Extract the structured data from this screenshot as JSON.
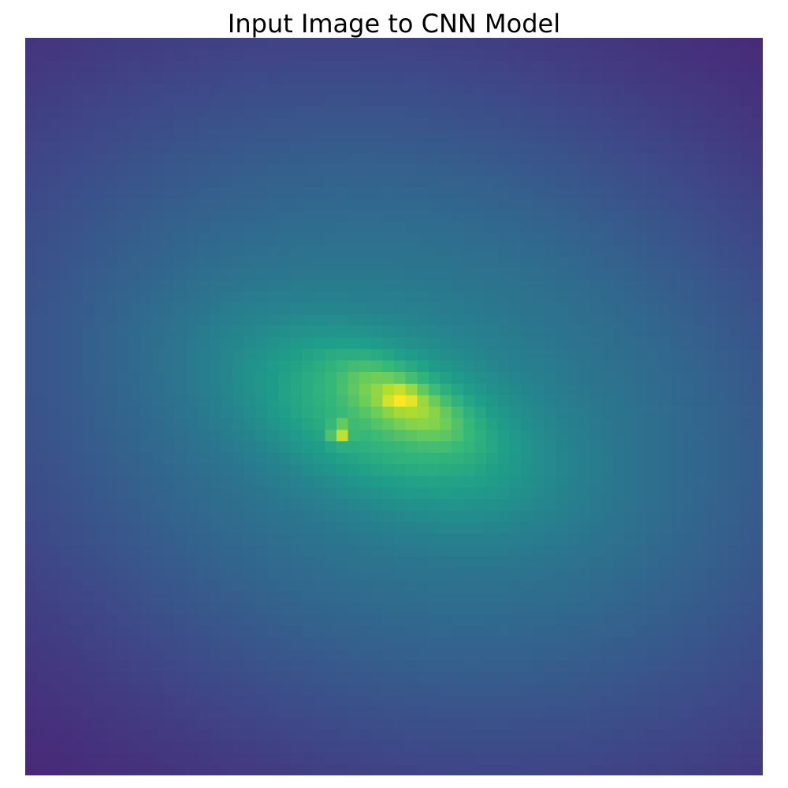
{
  "chart_data": {
    "type": "heatmap",
    "title": "Input Image to CNN Model",
    "xlabel": "",
    "ylabel": "",
    "axes_visible": false,
    "grid": false,
    "colormap": "viridis",
    "colormap_stops": [
      "#440154",
      "#482878",
      "#3e4989",
      "#31688e",
      "#26828e",
      "#1f9e89",
      "#35b779",
      "#6ece58",
      "#b5de2b",
      "#fde725"
    ],
    "grid_size": [
      64,
      64
    ],
    "value_range": [
      0,
      1
    ],
    "model": {
      "description_free": true,
      "background": 0.06,
      "components": [
        {
          "cx": 34.0,
          "cy": 32.5,
          "sx": 30.0,
          "sy": 22.0,
          "angle_deg": -18,
          "amp": 0.38
        },
        {
          "cx": 31.0,
          "cy": 33.0,
          "sx": 9.5,
          "sy": 4.5,
          "angle_deg": -22,
          "amp": 0.25
        },
        {
          "cx": 33.0,
          "cy": 31.5,
          "sx": 4.0,
          "sy": 1.6,
          "angle_deg": -28,
          "amp": 0.22
        },
        {
          "cx": 27.3,
          "cy": 34.3,
          "sx": 0.55,
          "sy": 0.55,
          "angle_deg": 0,
          "amp": 0.32
        },
        {
          "cx": 32.6,
          "cy": 31.2,
          "sx": 0.9,
          "sy": 0.55,
          "angle_deg": 0,
          "amp": 0.18
        }
      ]
    }
  }
}
